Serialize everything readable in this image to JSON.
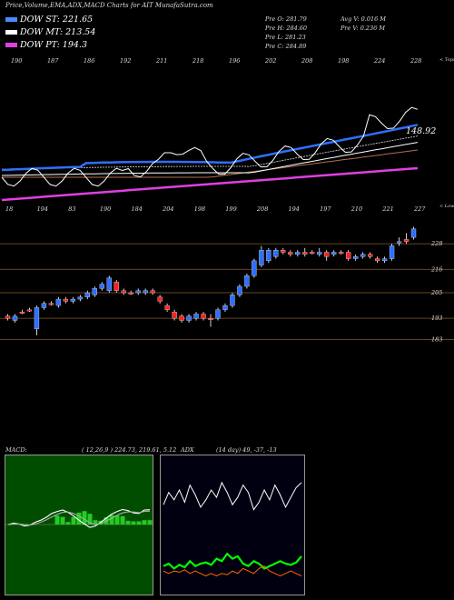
{
  "title": "Price,Volume,EMA,ADX,MACD Charts for AIT MunafaSutra.com",
  "legend": [
    {
      "label": "DOW ST: 221.65",
      "color": "#4a8cff"
    },
    {
      "label": "DOW MT: 213.54",
      "color": "#ffffff"
    },
    {
      "label": "DOW PT: 194.3",
      "color": "#e040e0"
    }
  ],
  "stats": {
    "pre_o": "Pre   O: 281.79",
    "pre_h": "Pre   H: 284.60",
    "pre_l": "Pre   L: 281.23",
    "pre_c": "Pre   C: 284.89",
    "avg_v": "Avg V: 0.016  M",
    "pre_v": "Pre   V: 0.236  M"
  },
  "top_label": "< Tops",
  "low_label": "< Lows",
  "price_label": "148.92",
  "macd_label": "MACD:",
  "macd_vals": "( 12,26,9 ) 224.73,  219.61,  5.12",
  "adx_label": "ADX",
  "adx_vals": "(14  day) 49,  -37,  -13",
  "chart_data": [
    {
      "type": "line",
      "name": "price-ema",
      "top_labels": [
        "190",
        "187",
        "186",
        "192",
        "211",
        "218",
        "196",
        "202",
        "208",
        "198",
        "224",
        "228"
      ],
      "bottom_labels": [
        "18",
        "194",
        "83",
        "190",
        "184",
        "204",
        "198",
        "199",
        "208",
        "194",
        "197",
        "210",
        "221",
        "227"
      ]
    },
    {
      "type": "candlestick",
      "name": "daily-candles",
      "y_ticks": [
        228,
        216,
        205,
        193,
        183
      ],
      "ylim": [
        176,
        240
      ],
      "candles": [
        {
          "o": 194,
          "c": 193,
          "h": 195,
          "l": 192,
          "up": false
        },
        {
          "o": 192,
          "c": 194,
          "h": 195,
          "l": 191,
          "up": true
        },
        {
          "o": 196,
          "c": 196,
          "h": 197,
          "l": 195,
          "up": false
        },
        {
          "o": 197,
          "c": 197,
          "h": 198,
          "l": 196,
          "up": false
        },
        {
          "o": 188,
          "c": 198,
          "h": 199,
          "l": 185,
          "up": true
        },
        {
          "o": 198,
          "c": 200,
          "h": 201,
          "l": 197,
          "up": true
        },
        {
          "o": 200,
          "c": 200,
          "h": 201,
          "l": 199,
          "up": false
        },
        {
          "o": 199,
          "c": 202,
          "h": 203,
          "l": 198,
          "up": true
        },
        {
          "o": 202,
          "c": 201,
          "h": 203,
          "l": 200,
          "up": false
        },
        {
          "o": 201,
          "c": 202,
          "h": 203,
          "l": 200,
          "up": true
        },
        {
          "o": 202,
          "c": 203,
          "h": 204,
          "l": 201,
          "up": true
        },
        {
          "o": 203,
          "c": 205,
          "h": 206,
          "l": 202,
          "up": true
        },
        {
          "o": 204,
          "c": 207,
          "h": 208,
          "l": 203,
          "up": true
        },
        {
          "o": 207,
          "c": 209,
          "h": 210,
          "l": 206,
          "up": true
        },
        {
          "o": 206,
          "c": 212,
          "h": 213,
          "l": 205,
          "up": true
        },
        {
          "o": 210,
          "c": 206,
          "h": 211,
          "l": 205,
          "up": false
        },
        {
          "o": 206,
          "c": 205,
          "h": 207,
          "l": 204,
          "up": false
        },
        {
          "o": 205,
          "c": 205,
          "h": 206,
          "l": 204,
          "up": false
        },
        {
          "o": 205,
          "c": 206,
          "h": 207,
          "l": 204,
          "up": true
        },
        {
          "o": 205,
          "c": 206,
          "h": 207,
          "l": 204,
          "up": true
        },
        {
          "o": 206,
          "c": 205,
          "h": 207,
          "l": 204,
          "up": false
        },
        {
          "o": 203,
          "c": 201,
          "h": 204,
          "l": 200,
          "up": false
        },
        {
          "o": 199,
          "c": 197,
          "h": 200,
          "l": 196,
          "up": false
        },
        {
          "o": 196,
          "c": 193,
          "h": 197,
          "l": 192,
          "up": false
        },
        {
          "o": 194,
          "c": 192,
          "h": 195,
          "l": 191,
          "up": false
        },
        {
          "o": 192,
          "c": 194,
          "h": 195,
          "l": 191,
          "up": true
        },
        {
          "o": 193,
          "c": 195,
          "h": 196,
          "l": 192,
          "up": true
        },
        {
          "o": 195,
          "c": 193,
          "h": 196,
          "l": 192,
          "up": false
        },
        {
          "o": 193,
          "c": 193,
          "h": 195,
          "l": 189,
          "up": false
        },
        {
          "o": 193,
          "c": 197,
          "h": 198,
          "l": 192,
          "up": true
        },
        {
          "o": 197,
          "c": 199,
          "h": 200,
          "l": 196,
          "up": true
        },
        {
          "o": 199,
          "c": 204,
          "h": 205,
          "l": 198,
          "up": true
        },
        {
          "o": 204,
          "c": 208,
          "h": 209,
          "l": 203,
          "up": true
        },
        {
          "o": 208,
          "c": 213,
          "h": 214,
          "l": 207,
          "up": true
        },
        {
          "o": 213,
          "c": 220,
          "h": 221,
          "l": 212,
          "up": true
        },
        {
          "o": 218,
          "c": 225,
          "h": 227,
          "l": 217,
          "up": true
        },
        {
          "o": 220,
          "c": 225,
          "h": 226,
          "l": 219,
          "up": true
        },
        {
          "o": 222,
          "c": 225,
          "h": 226,
          "l": 221,
          "up": true
        },
        {
          "o": 225,
          "c": 224,
          "h": 226,
          "l": 223,
          "up": false
        },
        {
          "o": 224,
          "c": 223,
          "h": 225,
          "l": 222,
          "up": false
        },
        {
          "o": 223,
          "c": 224,
          "h": 225,
          "l": 222,
          "up": true
        },
        {
          "o": 224,
          "c": 223,
          "h": 226,
          "l": 222,
          "up": false
        },
        {
          "o": 224,
          "c": 224,
          "h": 225,
          "l": 223,
          "up": false
        },
        {
          "o": 223,
          "c": 224,
          "h": 226,
          "l": 222,
          "up": true
        },
        {
          "o": 224,
          "c": 222,
          "h": 225,
          "l": 220,
          "up": false
        },
        {
          "o": 223,
          "c": 224,
          "h": 225,
          "l": 222,
          "up": true
        },
        {
          "o": 224,
          "c": 224,
          "h": 225,
          "l": 223,
          "up": false
        },
        {
          "o": 224,
          "c": 221,
          "h": 225,
          "l": 220,
          "up": false
        },
        {
          "o": 221,
          "c": 222,
          "h": 223,
          "l": 220,
          "up": true
        },
        {
          "o": 222,
          "c": 223,
          "h": 224,
          "l": 221,
          "up": true
        },
        {
          "o": 223,
          "c": 222,
          "h": 224,
          "l": 221,
          "up": false
        },
        {
          "o": 221,
          "c": 220,
          "h": 222,
          "l": 219,
          "up": false
        },
        {
          "o": 220,
          "c": 221,
          "h": 222,
          "l": 219,
          "up": true
        },
        {
          "o": 221,
          "c": 227,
          "h": 228,
          "l": 220,
          "up": true
        },
        {
          "o": 229,
          "c": 229,
          "h": 231,
          "l": 227,
          "up": true
        },
        {
          "o": 230,
          "c": 229,
          "h": 233,
          "l": 228,
          "up": false
        },
        {
          "o": 231,
          "c": 235,
          "h": 236,
          "l": 230,
          "up": true
        }
      ]
    },
    {
      "type": "line",
      "name": "macd",
      "ylim": [
        -10,
        10
      ],
      "series": [
        {
          "color": "#ffffff",
          "values": [
            0,
            0.5,
            0.2,
            -0.5,
            -0.2,
            0.8,
            1.5,
            2.5,
            3.8,
            4.5,
            5.0,
            4.2,
            3.0,
            1.5,
            0.2,
            -1.0,
            -0.5,
            0.8,
            2.2,
            3.6,
            4.5,
            5.2,
            4.8,
            4.0,
            3.8,
            5.0,
            5.1
          ]
        },
        {
          "color": "#aaaaaa",
          "values": [
            0,
            0.2,
            0.2,
            0,
            -0.2,
            0.2,
            0.8,
            1.6,
            2.6,
            3.5,
            4.2,
            4.3,
            3.8,
            2.9,
            1.8,
            0.6,
            0,
            0.4,
            1.2,
            2.2,
            3.2,
            4.0,
            4.4,
            4.3,
            4.1,
            4.5,
            4.6
          ]
        }
      ],
      "histogram": [
        0,
        0.3,
        0,
        -0.5,
        0,
        0.6,
        0.7,
        0.9,
        1.2,
        1.0,
        0.8,
        -0.1,
        -0.8,
        -1.4,
        -1.6,
        -1.6,
        -0.5,
        0.4,
        1.0,
        1.4,
        1.3,
        1.2,
        0.4,
        -0.3,
        -0.3,
        0.5,
        0.5
      ]
    },
    {
      "type": "line",
      "name": "adx",
      "ylim": [
        0,
        100
      ],
      "series": [
        {
          "color": "#ffffff",
          "values": [
            68,
            78,
            72,
            80,
            70,
            84,
            76,
            66,
            72,
            80,
            74,
            86,
            78,
            68,
            74,
            84,
            78,
            64,
            70,
            80,
            72,
            84,
            76,
            66,
            74,
            82,
            86
          ]
        },
        {
          "color": "#00ff00",
          "values": [
            18,
            20,
            16,
            19,
            17,
            22,
            18,
            20,
            21,
            19,
            24,
            22,
            28,
            24,
            26,
            20,
            18,
            22,
            20,
            16,
            18,
            20,
            22,
            20,
            19,
            21,
            26
          ]
        },
        {
          "color": "#ff6600",
          "values": [
            14,
            12,
            14,
            13,
            15,
            12,
            14,
            12,
            10,
            12,
            10,
            12,
            11,
            14,
            12,
            16,
            14,
            12,
            16,
            18,
            14,
            12,
            10,
            12,
            14,
            12,
            10
          ]
        }
      ]
    }
  ]
}
